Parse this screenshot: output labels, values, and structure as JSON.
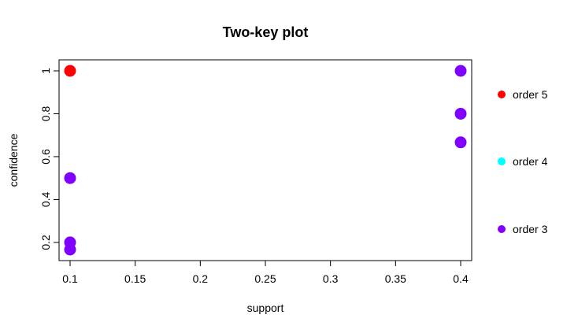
{
  "chart_data": {
    "type": "scatter",
    "title": "Two-key plot",
    "xlabel": "support",
    "ylabel": "confidence",
    "xlim": [
      0.1,
      0.4
    ],
    "ylim": [
      0.1667,
      1.0
    ],
    "x_ticks": [
      0.1,
      0.15,
      0.2,
      0.25,
      0.3,
      0.35,
      0.4
    ],
    "x_tick_labels": [
      "0.1",
      "0.15",
      "0.2",
      "0.25",
      "0.3",
      "0.35",
      "0.4"
    ],
    "y_ticks": [
      0.2,
      0.4,
      0.6,
      0.8,
      1.0
    ],
    "y_tick_labels": [
      "0.2",
      "0.4",
      "0.6",
      "0.8",
      "1"
    ],
    "grid": false,
    "legend_position": "right",
    "series": [
      {
        "name": "order 5",
        "color": "#ff0000",
        "points": [
          {
            "x": 0.1,
            "y": 1.0
          }
        ]
      },
      {
        "name": "order 4",
        "color": "#00ffff",
        "points": []
      },
      {
        "name": "order 3",
        "color": "#8000ff",
        "points": [
          {
            "x": 0.1,
            "y": 0.5
          },
          {
            "x": 0.1,
            "y": 0.2
          },
          {
            "x": 0.1,
            "y": 0.1667
          },
          {
            "x": 0.4,
            "y": 1.0
          },
          {
            "x": 0.4,
            "y": 0.8
          },
          {
            "x": 0.4,
            "y": 0.6667
          }
        ]
      }
    ]
  }
}
